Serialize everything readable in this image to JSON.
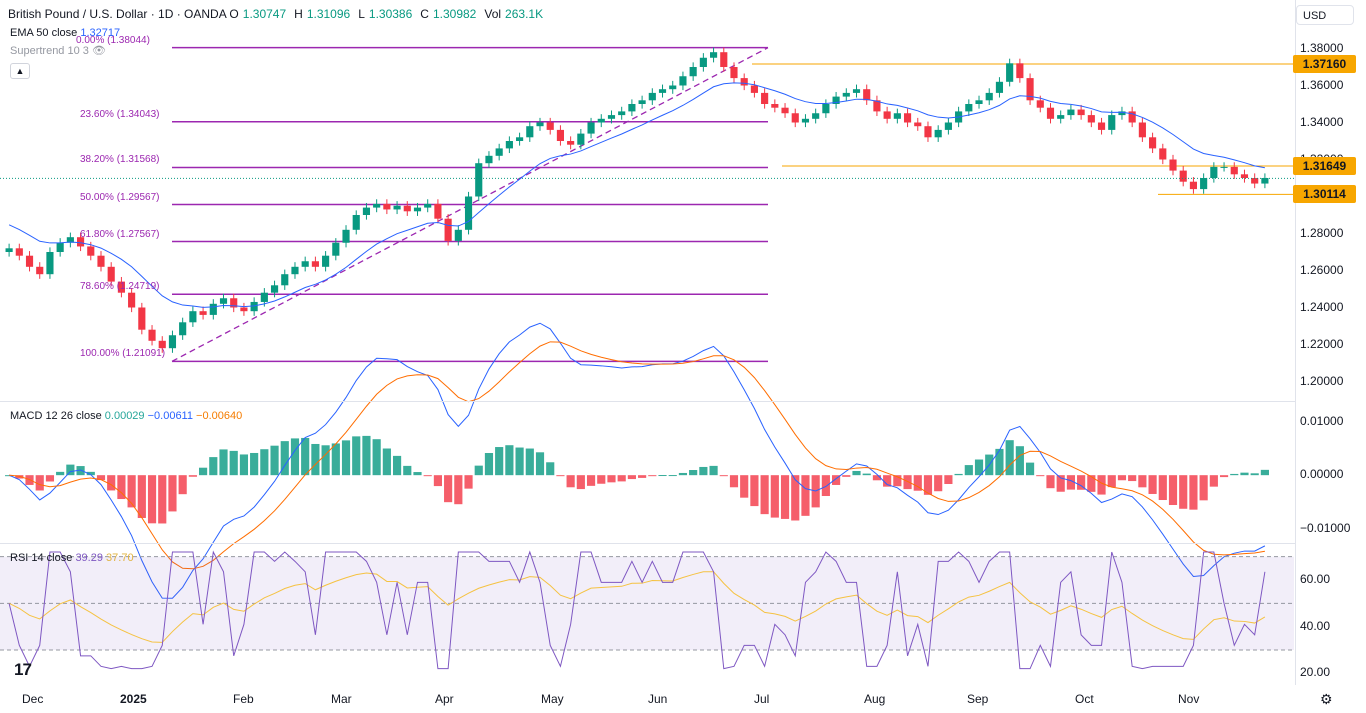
{
  "header": {
    "title": "British Pound / U.S. Dollar · 1D · OANDA",
    "ohlc": [
      {
        "label": "O",
        "value": "1.30747"
      },
      {
        "label": "H",
        "value": "1.31096"
      },
      {
        "label": "L",
        "value": "1.30386"
      },
      {
        "label": "C",
        "value": "1.30982"
      },
      {
        "label": "Vol",
        "value": "263.1K"
      }
    ],
    "ema_label": "EMA 50 close",
    "ema_value": "1.32717",
    "supertrend_label": "Supertrend 10 3",
    "currency": "USD"
  },
  "macd": {
    "label": "MACD 12 26 close",
    "values": [
      "0.00029",
      "−0.00611",
      "−0.00640"
    ]
  },
  "rsi": {
    "label": "RSI 14 close",
    "values": [
      "39.29",
      "37.70"
    ]
  },
  "colors": {
    "up": "#089981",
    "down": "#f23645",
    "fib": "#9c27b0",
    "ema": "#2962ff",
    "level": "#f7a600",
    "macd": "#2962ff",
    "signal": "#ff6d00",
    "rsi": "#7e57c2",
    "rsi_ma": "#f5c242"
  },
  "chart_data": [
    {
      "type": "line",
      "pane": "price",
      "y_ticks": [
        "1.38000",
        "1.36000",
        "1.34000",
        "1.32000",
        "1.28000",
        "1.26000",
        "1.24000",
        "1.22000",
        "1.20000"
      ],
      "x_ticks": [
        {
          "label": "Dec",
          "bold": false
        },
        {
          "label": "2025",
          "bold": true
        },
        {
          "label": "Feb",
          "bold": false
        },
        {
          "label": "Mar",
          "bold": false
        },
        {
          "label": "Apr",
          "bold": false
        },
        {
          "label": "May",
          "bold": false
        },
        {
          "label": "Jun",
          "bold": false
        },
        {
          "label": "Jul",
          "bold": false
        },
        {
          "label": "Aug",
          "bold": false
        },
        {
          "label": "Sep",
          "bold": false
        },
        {
          "label": "Oct",
          "bold": false
        },
        {
          "label": "Nov",
          "bold": false
        }
      ],
      "ylim": [
        1.19,
        1.39
      ],
      "fib_levels": [
        {
          "label": "0.00% (1.38044)",
          "value": 1.38044
        },
        {
          "label": "23.60% (1.34043)",
          "value": 1.34043
        },
        {
          "label": "38.20% (1.31568)",
          "value": 1.31568
        },
        {
          "label": "50.00% (1.29567)",
          "value": 1.29567
        },
        {
          "label": "61.80% (1.27567)",
          "value": 1.27567
        },
        {
          "label": "78.60% (1.24719)",
          "value": 1.24719
        },
        {
          "label": "100.00% (1.21091)",
          "value": 1.21091
        }
      ],
      "levels": [
        {
          "label": "1.37160",
          "value": 1.3716
        },
        {
          "label": "1.31649",
          "value": 1.31649
        },
        {
          "label": "1.30114",
          "value": 1.30114
        }
      ],
      "close": [
        1.272,
        1.268,
        1.262,
        1.258,
        1.27,
        1.275,
        1.278,
        1.273,
        1.268,
        1.262,
        1.254,
        1.248,
        1.24,
        1.228,
        1.222,
        1.218,
        1.225,
        1.232,
        1.238,
        1.236,
        1.242,
        1.245,
        1.24,
        1.238,
        1.243,
        1.248,
        1.252,
        1.258,
        1.262,
        1.265,
        1.262,
        1.268,
        1.275,
        1.282,
        1.29,
        1.294,
        1.296,
        1.293,
        1.295,
        1.292,
        1.294,
        1.296,
        1.288,
        1.276,
        1.282,
        1.3,
        1.318,
        1.322,
        1.326,
        1.33,
        1.332,
        1.338,
        1.34,
        1.336,
        1.33,
        1.328,
        1.334,
        1.34,
        1.342,
        1.344,
        1.346,
        1.35,
        1.352,
        1.356,
        1.358,
        1.36,
        1.365,
        1.37,
        1.375,
        1.378,
        1.37,
        1.364,
        1.36,
        1.356,
        1.35,
        1.348,
        1.345,
        1.34,
        1.342,
        1.345,
        1.35,
        1.354,
        1.356,
        1.358,
        1.352,
        1.346,
        1.342,
        1.345,
        1.34,
        1.338,
        1.332,
        1.336,
        1.34,
        1.346,
        1.35,
        1.352,
        1.356,
        1.362,
        1.372,
        1.364,
        1.352,
        1.348,
        1.342,
        1.344,
        1.347,
        1.344,
        1.34,
        1.336,
        1.344,
        1.346,
        1.34,
        1.332,
        1.326,
        1.32,
        1.314,
        1.308,
        1.304,
        1.31,
        1.316,
        1.316,
        1.312,
        1.31,
        1.307,
        1.31
      ]
    },
    {
      "type": "line",
      "pane": "macd",
      "y_ticks": [
        "0.01000",
        "0.00000",
        "−0.01000"
      ],
      "ylim": [
        -0.0125,
        0.0135
      ]
    },
    {
      "type": "line",
      "pane": "rsi",
      "y_ticks": [
        "60.00",
        "40.00",
        "20.00"
      ],
      "ylim": [
        15,
        75
      ],
      "bands": [
        70,
        50,
        30
      ]
    }
  ]
}
